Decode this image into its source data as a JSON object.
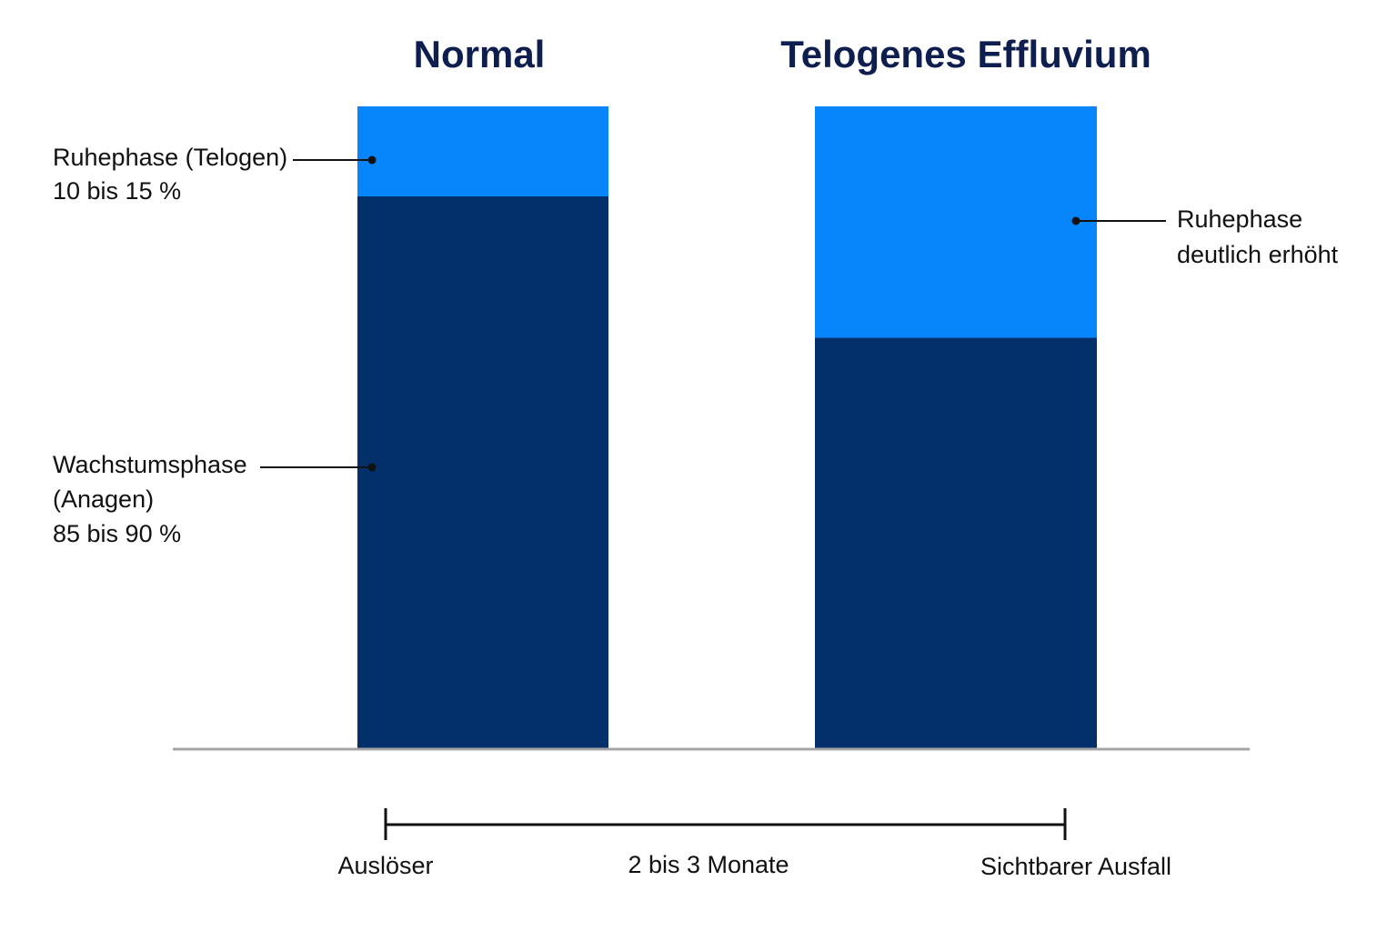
{
  "chart_data": {
    "type": "bar",
    "stacked": true,
    "categories": [
      "Normal",
      "Telogenes Effluvium"
    ],
    "series": [
      {
        "name": "Wachstumsphase (Anagen)",
        "values": [
          86,
          64
        ],
        "color": "#03306a"
      },
      {
        "name": "Ruhephase (Telogen)",
        "values": [
          14,
          36
        ],
        "color": "#0786fc"
      }
    ],
    "ylim": [
      0,
      100
    ],
    "grid": false,
    "legend": "none",
    "annotations": {
      "normal_telogen": {
        "line1": "Ruhephase (Telogen)",
        "line2": "10 bis 15 %"
      },
      "normal_anagen": {
        "line1": "Wachstumsphase",
        "line2": "(Anagen)",
        "line3": "85 bis 90 %"
      },
      "effluvium_telogen": {
        "line1": "Ruhephase",
        "line2": "deutlich erhöht"
      }
    },
    "timeline": {
      "start": "Auslöser",
      "duration": "2 bis 3 Monate",
      "end": "Sichtbarer Ausfall"
    }
  },
  "colors": {
    "title": "#0e1e4e",
    "baseline": "#a6a6a6",
    "annotation_line": "#111111"
  }
}
